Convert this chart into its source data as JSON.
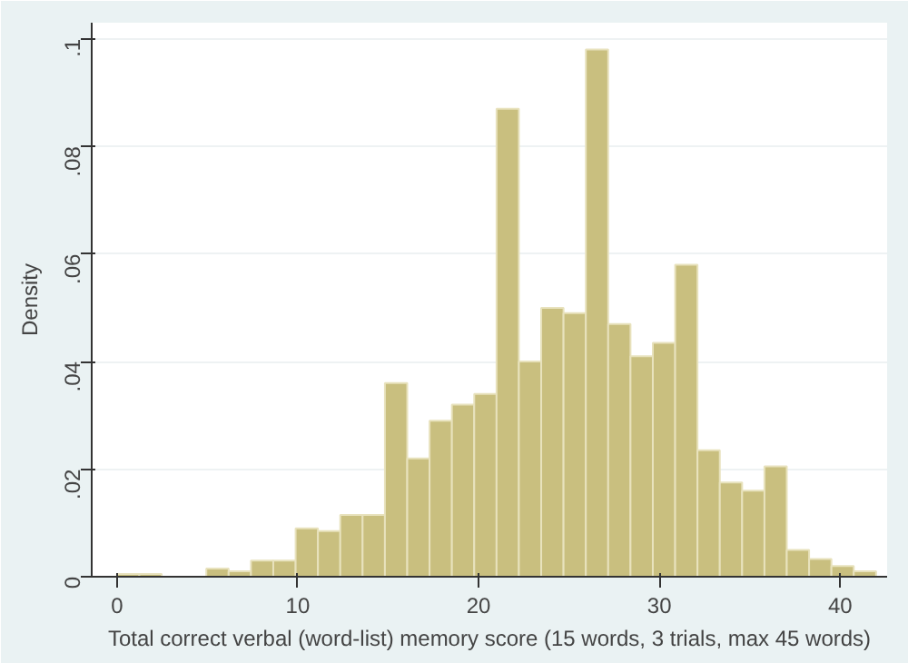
{
  "chart_data": {
    "type": "histogram",
    "xlabel": "Total correct verbal (word-list) memory score (15 words, 3 trials, max 45 words)",
    "ylabel": "Density",
    "color": "#c9bf7f",
    "bins": [
      0,
      1.235,
      2.47,
      3.705,
      4.94,
      6.175,
      7.41,
      8.645,
      9.88,
      11.115,
      12.35,
      13.585,
      14.82,
      16.055,
      17.29,
      18.525,
      19.76,
      20.995,
      22.23,
      23.465,
      24.7,
      25.935,
      27.17,
      28.405,
      29.64,
      30.875,
      32.11,
      33.345,
      34.58,
      35.815,
      37.05,
      38.285,
      39.52,
      40.755,
      41.99
    ],
    "values": [
      0.0005,
      0.0005,
      0,
      0,
      0.0015,
      0.001,
      0.003,
      0.003,
      0.009,
      0.0085,
      0.0115,
      0.0115,
      0.036,
      0.022,
      0.029,
      0.032,
      0.034,
      0.087,
      0.04,
      0.05,
      0.049,
      0.098,
      0.047,
      0.041,
      0.0435,
      0.058,
      0.0235,
      0.0175,
      0.016,
      0.0205,
      0.005,
      0.0033,
      0.002,
      0.001
    ],
    "xlim": [
      -1.4,
      42.6
    ],
    "ylim": [
      0,
      0.103
    ],
    "xticks": [
      0,
      10,
      20,
      30,
      40
    ],
    "yticks": [
      0,
      {
        "value": 0.02,
        "label": ".02"
      },
      {
        "value": 0.04,
        "label": ".04"
      },
      {
        "value": 0.06,
        "label": ".06"
      },
      {
        "value": 0.08,
        "label": ".08"
      },
      {
        "value": 0.1,
        "label": ".1"
      }
    ],
    "grid": "y"
  }
}
